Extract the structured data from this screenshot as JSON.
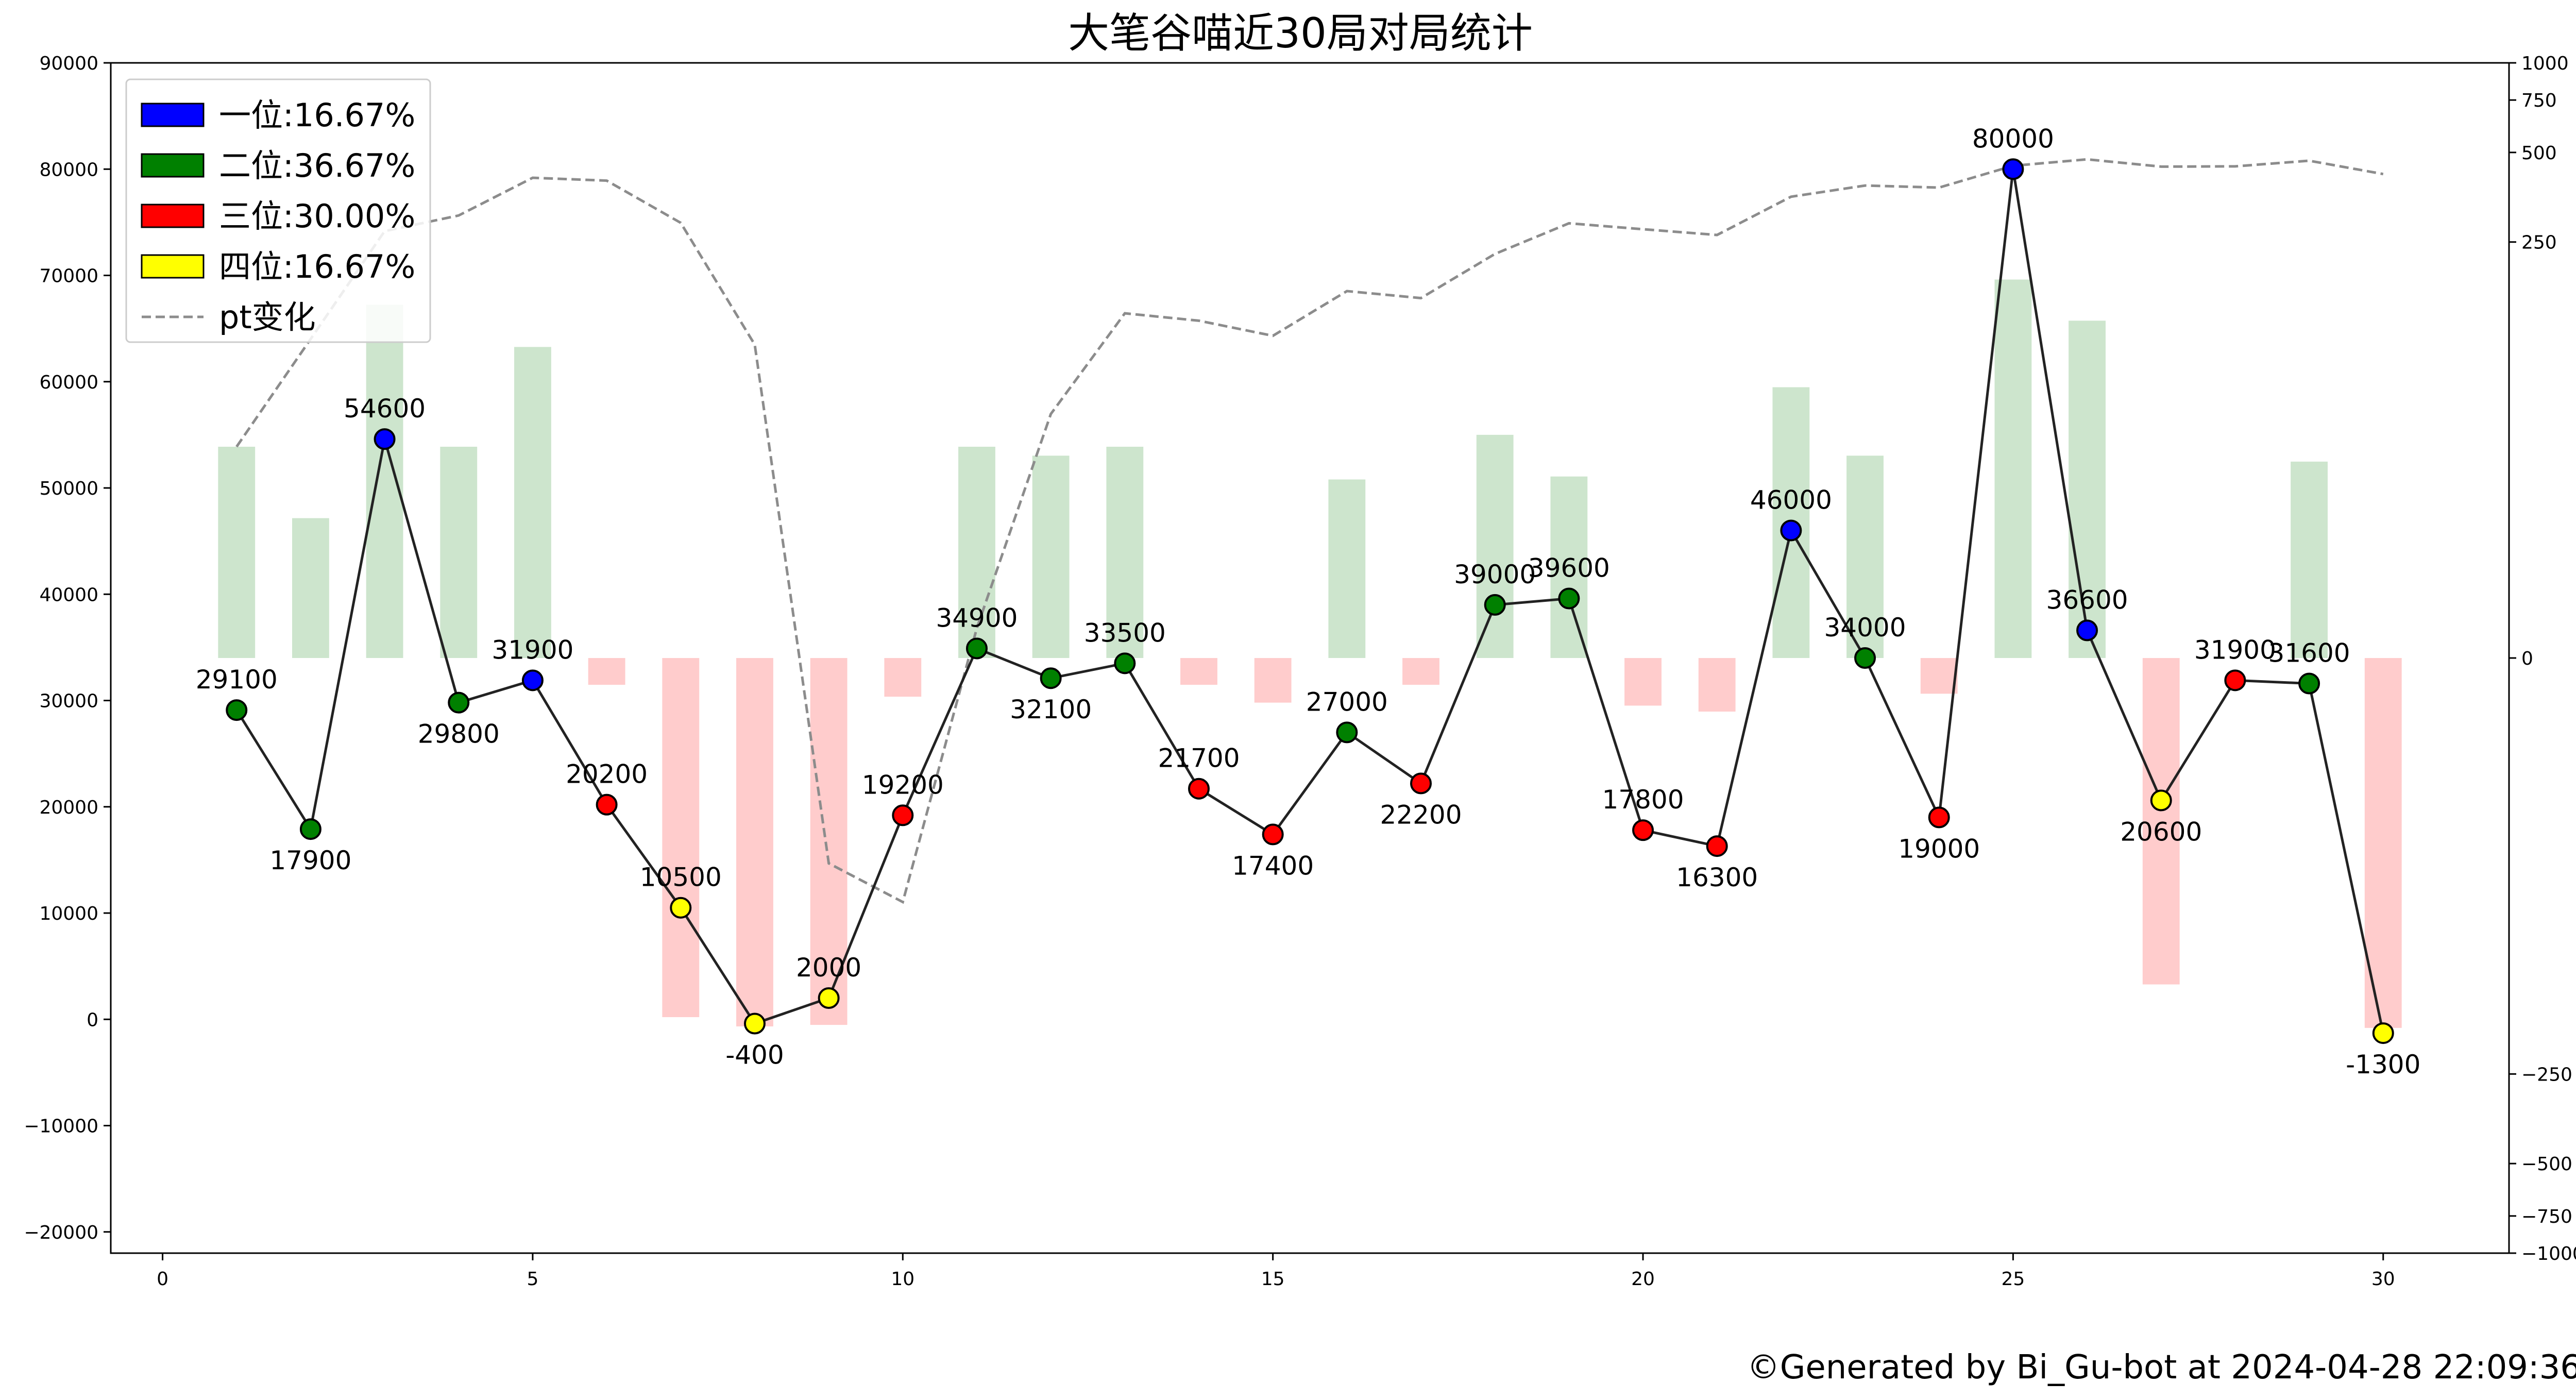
{
  "chart_data": {
    "type": "line",
    "title": "大笔谷喵近30局对局统计",
    "footer": "©Generated by Bi_Gu-bot at 2024-04-28 22:09:36",
    "x": [
      1,
      2,
      3,
      4,
      5,
      6,
      7,
      8,
      9,
      10,
      11,
      12,
      13,
      14,
      15,
      16,
      17,
      18,
      19,
      20,
      21,
      22,
      23,
      24,
      25,
      26,
      27,
      28,
      29,
      30
    ],
    "xlim": [
      -0.7,
      31.7
    ],
    "x_ticks": [
      "0",
      "5",
      "10",
      "15",
      "20",
      "25",
      "30"
    ],
    "score_series": {
      "values": [
        29100,
        17900,
        54600,
        29800,
        31900,
        20200,
        10500,
        -400,
        2000,
        19200,
        34900,
        32100,
        33500,
        21700,
        17400,
        27000,
        22200,
        39000,
        39600,
        17800,
        16300,
        46000,
        34000,
        19000,
        80000,
        36600,
        20600,
        31900,
        31600,
        -1300
      ],
      "labels": [
        "29100",
        "17900",
        "54600",
        "29800",
        "31900",
        "20200",
        "10500",
        "-400",
        "2000",
        "19200",
        "34900",
        "32100",
        "33500",
        "21700",
        "17400",
        "27000",
        "22200",
        "39000",
        "39600",
        "17800",
        "16300",
        "46000",
        "34000",
        "19000",
        "80000",
        "36600",
        "20600",
        "31900",
        "31600",
        "-1300"
      ],
      "ranks": [
        2,
        2,
        1,
        2,
        1,
        3,
        4,
        4,
        4,
        3,
        2,
        2,
        2,
        3,
        3,
        2,
        3,
        2,
        2,
        3,
        3,
        1,
        2,
        3,
        1,
        1,
        4,
        3,
        2,
        4
      ],
      "ylim": [
        -22000,
        90000
      ],
      "y_ticks": [
        "90000",
        "80000",
        "70000",
        "60000",
        "50000",
        "40000",
        "30000",
        "20000",
        "10000",
        "0",
        "−10000",
        "−20000"
      ],
      "line_color": "#222222"
    },
    "pt_change": {
      "name": "pt变化",
      "values": [
        71,
        118,
        272,
        307,
        411,
        402,
        290,
        113,
        -69,
        -82,
        10,
        82,
        144,
        136,
        121,
        171,
        162,
        228,
        289,
        276,
        264,
        355,
        387,
        381,
        451,
        474,
        448,
        449,
        469,
        423
      ],
      "color": "#8c8c8c"
    },
    "pt_bars": {
      "values": [
        71,
        47,
        154,
        71,
        111,
        -9,
        -161,
        -173,
        -171,
        -13,
        71,
        68,
        71,
        -9,
        -15,
        60,
        -9,
        75,
        61,
        -16,
        -18,
        91,
        68,
        -12,
        187,
        136,
        -125,
        0,
        66,
        -175
      ],
      "positive_color": "#cde5cd",
      "negative_color": "#ffcccc"
    },
    "right_axis": {
      "ylim": [
        -1000,
        1000
      ],
      "y_ticks": [
        "1000",
        "750",
        "500",
        "250",
        "0",
        "−250",
        "−500",
        "−750",
        "−1000"
      ]
    },
    "legend": {
      "placement": "top-left",
      "entries": [
        {
          "label": "一位:16.67%",
          "color": "#0000ff"
        },
        {
          "label": "二位:36.67%",
          "color": "#008000"
        },
        {
          "label": "三位:30.00%",
          "color": "#ff0000"
        },
        {
          "label": "四位:16.67%",
          "color": "#ffff00"
        },
        {
          "label": "pt变化",
          "color": "#8c8c8c"
        }
      ]
    },
    "grid": false
  }
}
